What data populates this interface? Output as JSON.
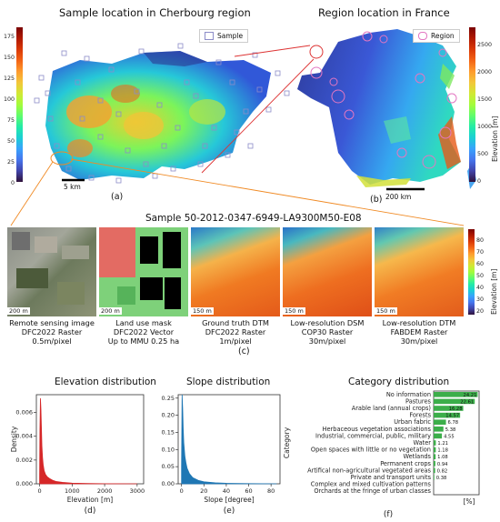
{
  "panel_a": {
    "title": "Sample location in Cherbourg region",
    "legend_label": "Sample",
    "scale_bar": "5 km",
    "label": "(a)",
    "yticks": [
      "0",
      "25",
      "50",
      "75",
      "100",
      "125",
      "150",
      "175"
    ]
  },
  "panel_b": {
    "title": "Region location in France",
    "legend_label": "Region",
    "scale_bar": "200 km",
    "label": "(b)",
    "colorbar_label": "Elevation [m]",
    "colorbar_ticks": [
      "0",
      "500",
      "1000",
      "1500",
      "2000",
      "2500"
    ]
  },
  "panel_c": {
    "title": "Sample 50-2012-0347-6949-LA9300M50-E08",
    "label": "(c)",
    "colorbar_label": "Elevation [m]",
    "colorbar_ticks": [
      "20",
      "30",
      "40",
      "50",
      "60",
      "70",
      "80"
    ],
    "tiles": [
      {
        "scale": "200 m",
        "cap1": "Remote sensing image",
        "cap2": "DFC2022 Raster",
        "cap3": "0.5m/pixel"
      },
      {
        "scale": "200 m",
        "cap1": "Land use mask",
        "cap2": "DFC2022 Vector",
        "cap3": "Up to MMU 0.25 ha"
      },
      {
        "scale": "150 m",
        "cap1": "Ground truth DTM",
        "cap2": "DFC2022 Raster",
        "cap3": "1m/pixel"
      },
      {
        "scale": "150 m",
        "cap1": "Low-resolution DSM",
        "cap2": "COP30 Raster",
        "cap3": "30m/pixel"
      },
      {
        "scale": "150 m",
        "cap1": "Low-resolution DTM",
        "cap2": "FABDEM Raster",
        "cap3": "30m/pixel"
      }
    ]
  },
  "colors": {
    "elevation_hist": "#d62728",
    "slope_hist": "#1f77b4",
    "category_bar": "#3cae4a",
    "region_outline": "#e377c2",
    "sample_square": "#8c8cc8"
  },
  "chart_data": [
    {
      "type": "area",
      "title": "Elevation distribution",
      "xlabel": "Elevation [m]",
      "ylabel": "Density",
      "label": "(d)",
      "xlim": [
        -100,
        3200
      ],
      "ylim": [
        0,
        0.0075
      ],
      "xticks": [
        "0",
        "1000",
        "2000",
        "3000"
      ],
      "yticks": [
        "0.000",
        "0.002",
        "0.004",
        "0.006"
      ],
      "x": [
        0,
        10,
        25,
        40,
        55,
        70,
        90,
        110,
        140,
        180,
        230,
        300,
        400,
        500,
        700,
        1000,
        1500,
        2000,
        3000
      ],
      "y": [
        0.0005,
        0.0045,
        0.0072,
        0.0063,
        0.0048,
        0.0032,
        0.0022,
        0.0016,
        0.0011,
        0.0008,
        0.0006,
        0.00045,
        0.0003,
        0.0002,
        0.00012,
        6e-05,
        3e-05,
        1e-05,
        0
      ]
    },
    {
      "type": "area",
      "title": "Slope distribution",
      "xlabel": "Slope [degree]",
      "ylabel": "",
      "label": "(e)",
      "xlim": [
        -3,
        88
      ],
      "ylim": [
        0,
        0.26
      ],
      "xticks": [
        "0",
        "20",
        "40",
        "60",
        "80"
      ],
      "yticks": [
        "0.00",
        "0.05",
        "0.10",
        "0.15",
        "0.20",
        "0.25"
      ],
      "x": [
        0,
        0.5,
        1,
        1.5,
        2,
        3,
        4,
        5,
        7,
        10,
        15,
        20,
        30,
        40,
        60,
        85
      ],
      "y": [
        0.05,
        0.26,
        0.22,
        0.16,
        0.12,
        0.08,
        0.06,
        0.045,
        0.03,
        0.018,
        0.01,
        0.006,
        0.003,
        0.0015,
        0.0005,
        0
      ]
    },
    {
      "type": "bar",
      "title": "Category distribution",
      "xlabel": "[%]",
      "ylabel": "Category",
      "label": "(f)",
      "categories": [
        "No information",
        "Pastures",
        "Arable land (annual crops)",
        "Forests",
        "Urban fabric",
        "Herbaceous vegetation associations",
        "Industrial, commercial, public, military",
        "Water",
        "Open spaces with little or no vegetation",
        "Wetlands",
        "Permanent crops",
        "Artifical non-agricultural vegetated areas",
        "Private and transport units",
        "Complex and mixed cultivation patterns",
        "Orchards at the fringe of urban classes"
      ],
      "values": [
        24.21,
        22.61,
        16.28,
        14.57,
        6.78,
        5.38,
        4.55,
        1.21,
        1.18,
        1.08,
        0.94,
        0.82,
        0.38,
        0,
        0
      ],
      "value_labels": [
        "24.21",
        "22.61",
        "16.28",
        "14.57",
        "6.78",
        "5.38",
        "4.55",
        "1.21",
        "1.18",
        "1.08",
        "0.94",
        "0.82",
        "0.38",
        "",
        ""
      ]
    }
  ]
}
